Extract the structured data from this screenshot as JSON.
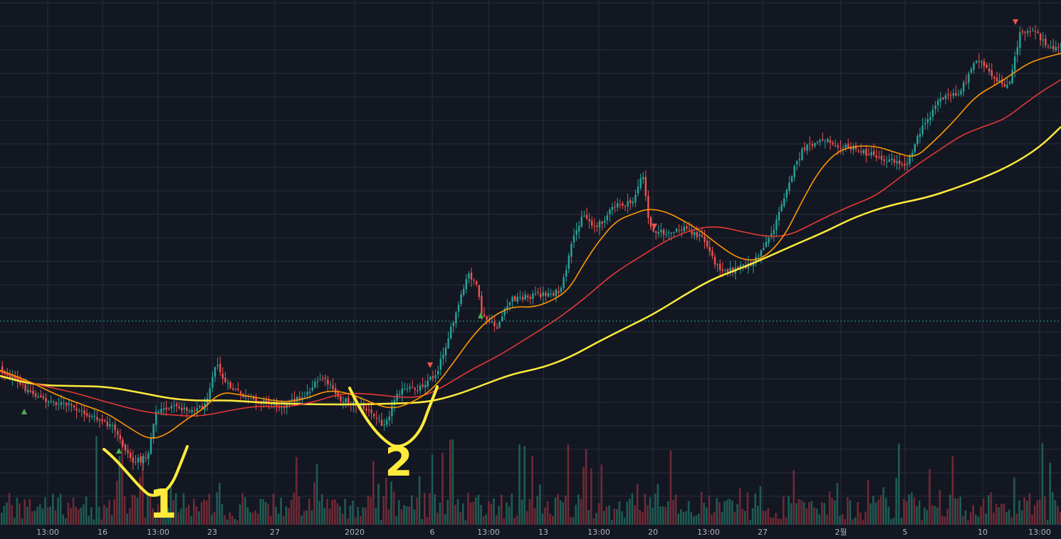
{
  "chart_data": {
    "type": "candlestick",
    "title": "",
    "xlabel": "",
    "ylabel": "",
    "grid": true,
    "legend": "none",
    "colors": {
      "background": "#131722",
      "grid": "#2a2e39",
      "up": "#26a69a",
      "down": "#ef5350",
      "vol_up": "#1f5b53",
      "vol_down": "#6e2a35",
      "ma_fast": "#ff9800",
      "ma_mid": "#e53935",
      "ma_slow": "#ffeb3b",
      "price_line": "#26a69a",
      "marker_up": "#4caf50",
      "marker_down": "#ef5350",
      "annotation": "#ffeb3b",
      "axis_text": "#b2b5be"
    },
    "x_ticks": [
      "13:00",
      "16",
      "13:00",
      "23",
      "27",
      "2020",
      "6",
      "13:00",
      "13",
      "13:00",
      "20",
      "13:00",
      "27",
      "2월",
      "5",
      "10",
      "13:00"
    ],
    "x_tick_positions": [
      67,
      144,
      222,
      298,
      386,
      498,
      607,
      686,
      763,
      841,
      917,
      995,
      1071,
      1181,
      1271,
      1380,
      1460
    ],
    "price_keyframes": [
      [
        0,
        515
      ],
      [
        30,
        540
      ],
      [
        60,
        560
      ],
      [
        100,
        570
      ],
      [
        130,
        585
      ],
      [
        160,
        600
      ],
      [
        175,
        625
      ],
      [
        190,
        650
      ],
      [
        210,
        640
      ],
      [
        220,
        580
      ],
      [
        240,
        572
      ],
      [
        270,
        575
      ],
      [
        290,
        570
      ],
      [
        305,
        510
      ],
      [
        320,
        540
      ],
      [
        350,
        560
      ],
      [
        380,
        565
      ],
      [
        400,
        570
      ],
      [
        430,
        555
      ],
      [
        455,
        530
      ],
      [
        480,
        560
      ],
      [
        510,
        570
      ],
      [
        540,
        595
      ],
      [
        550,
        580
      ],
      [
        560,
        550
      ],
      [
        590,
        545
      ],
      [
        615,
        525
      ],
      [
        640,
        450
      ],
      [
        660,
        385
      ],
      [
        670,
        395
      ],
      [
        680,
        445
      ],
      [
        700,
        460
      ],
      [
        720,
        420
      ],
      [
        750,
        415
      ],
      [
        790,
        410
      ],
      [
        805,
        345
      ],
      [
        820,
        300
      ],
      [
        840,
        320
      ],
      [
        865,
        290
      ],
      [
        890,
        285
      ],
      [
        905,
        245
      ],
      [
        915,
        320
      ],
      [
        940,
        330
      ],
      [
        965,
        320
      ],
      [
        990,
        335
      ],
      [
        1010,
        375
      ],
      [
        1030,
        380
      ],
      [
        1060,
        370
      ],
      [
        1090,
        320
      ],
      [
        1110,
        255
      ],
      [
        1130,
        210
      ],
      [
        1160,
        195
      ],
      [
        1185,
        205
      ],
      [
        1220,
        215
      ],
      [
        1250,
        225
      ],
      [
        1275,
        230
      ],
      [
        1295,
        185
      ],
      [
        1320,
        140
      ],
      [
        1350,
        130
      ],
      [
        1375,
        80
      ],
      [
        1400,
        115
      ],
      [
        1420,
        120
      ],
      [
        1435,
        45
      ],
      [
        1455,
        40
      ],
      [
        1475,
        70
      ],
      [
        1490,
        65
      ]
    ],
    "ma_fast_path": [
      [
        0,
        520
      ],
      [
        40,
        535
      ],
      [
        80,
        555
      ],
      [
        120,
        570
      ],
      [
        150,
        580
      ],
      [
        180,
        600
      ],
      [
        210,
        618
      ],
      [
        235,
        610
      ],
      [
        260,
        590
      ],
      [
        285,
        575
      ],
      [
        310,
        550
      ],
      [
        340,
        555
      ],
      [
        370,
        560
      ],
      [
        400,
        565
      ],
      [
        430,
        560
      ],
      [
        460,
        548
      ],
      [
        490,
        552
      ],
      [
        520,
        565
      ],
      [
        550,
        575
      ],
      [
        580,
        565
      ],
      [
        610,
        545
      ],
      [
        640,
        505
      ],
      [
        665,
        470
      ],
      [
        690,
        445
      ],
      [
        720,
        430
      ],
      [
        750,
        432
      ],
      [
        780,
        420
      ],
      [
        800,
        405
      ],
      [
        820,
        370
      ],
      [
        840,
        340
      ],
      [
        865,
        310
      ],
      [
        890,
        300
      ],
      [
        910,
        293
      ],
      [
        935,
        297
      ],
      [
        960,
        310
      ],
      [
        985,
        325
      ],
      [
        1010,
        345
      ],
      [
        1040,
        365
      ],
      [
        1070,
        365
      ],
      [
        1100,
        335
      ],
      [
        1125,
        285
      ],
      [
        1150,
        240
      ],
      [
        1175,
        213
      ],
      [
        1200,
        205
      ],
      [
        1230,
        205
      ],
      [
        1260,
        215
      ],
      [
        1285,
        222
      ],
      [
        1310,
        200
      ],
      [
        1340,
        170
      ],
      [
        1370,
        135
      ],
      [
        1400,
        118
      ],
      [
        1420,
        105
      ],
      [
        1445,
        88
      ],
      [
        1470,
        80
      ],
      [
        1490,
        75
      ]
    ],
    "ma_mid_path": [
      [
        0,
        522
      ],
      [
        50,
        540
      ],
      [
        100,
        550
      ],
      [
        150,
        565
      ],
      [
        200,
        578
      ],
      [
        240,
        583
      ],
      [
        280,
        585
      ],
      [
        320,
        577
      ],
      [
        360,
        570
      ],
      [
        400,
        572
      ],
      [
        440,
        565
      ],
      [
        480,
        552
      ],
      [
        520,
        553
      ],
      [
        560,
        558
      ],
      [
        590,
        558
      ],
      [
        620,
        545
      ],
      [
        660,
        520
      ],
      [
        700,
        500
      ],
      [
        740,
        475
      ],
      [
        780,
        450
      ],
      [
        820,
        420
      ],
      [
        860,
        385
      ],
      [
        900,
        360
      ],
      [
        940,
        335
      ],
      [
        980,
        320
      ],
      [
        1010,
        318
      ],
      [
        1040,
        325
      ],
      [
        1080,
        333
      ],
      [
        1110,
        330
      ],
      [
        1140,
        315
      ],
      [
        1170,
        300
      ],
      [
        1200,
        287
      ],
      [
        1230,
        275
      ],
      [
        1260,
        252
      ],
      [
        1290,
        230
      ],
      [
        1320,
        210
      ],
      [
        1350,
        190
      ],
      [
        1380,
        178
      ],
      [
        1410,
        168
      ],
      [
        1440,
        145
      ],
      [
        1465,
        127
      ],
      [
        1490,
        112
      ]
    ],
    "ma_slow_path": [
      [
        0,
        528
      ],
      [
        50,
        541
      ],
      [
        100,
        542
      ],
      [
        150,
        543
      ],
      [
        200,
        552
      ],
      [
        240,
        560
      ],
      [
        280,
        563
      ],
      [
        320,
        562
      ],
      [
        360,
        565
      ],
      [
        400,
        567
      ],
      [
        450,
        568
      ],
      [
        500,
        568
      ],
      [
        550,
        567
      ],
      [
        600,
        565
      ],
      [
        640,
        555
      ],
      [
        680,
        540
      ],
      [
        720,
        525
      ],
      [
        760,
        517
      ],
      [
        800,
        502
      ],
      [
        840,
        480
      ],
      [
        880,
        460
      ],
      [
        920,
        440
      ],
      [
        960,
        415
      ],
      [
        1000,
        392
      ],
      [
        1040,
        377
      ],
      [
        1080,
        360
      ],
      [
        1120,
        342
      ],
      [
        1160,
        325
      ],
      [
        1200,
        305
      ],
      [
        1250,
        288
      ],
      [
        1300,
        278
      ],
      [
        1340,
        265
      ],
      [
        1380,
        250
      ],
      [
        1420,
        232
      ],
      [
        1460,
        207
      ],
      [
        1490,
        178
      ]
    ],
    "price_line_y": 451,
    "markers": [
      {
        "x": 34,
        "y": 578,
        "dir": "up"
      },
      {
        "x": 167,
        "y": 633,
        "dir": "up"
      },
      {
        "x": 604,
        "y": 513,
        "dir": "down"
      },
      {
        "x": 675,
        "y": 443,
        "dir": "up"
      },
      {
        "x": 919,
        "y": 318,
        "dir": "down"
      },
      {
        "x": 1426,
        "y": 31,
        "dir": "down"
      }
    ],
    "annotations": [
      {
        "text": "1",
        "x": 229,
        "y": 727
      },
      {
        "text": "2",
        "x": 560,
        "y": 668
      }
    ]
  }
}
